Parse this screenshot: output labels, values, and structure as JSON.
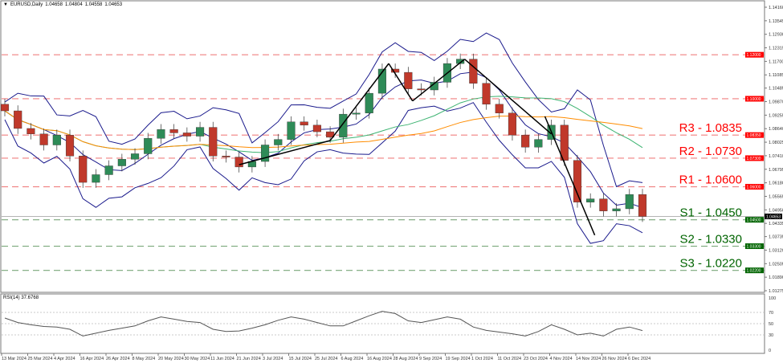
{
  "header": {
    "symbol": "EURUSD,Daily",
    "open": "1.04658",
    "high": "1.04804",
    "low": "1.04558",
    "close": "1.04653",
    "collapse_icon": "triangle-down-icon"
  },
  "rsi_header": {
    "label": "RSI(14)",
    "value": "37.6768"
  },
  "colors": {
    "bull": "#2e8b57",
    "bear": "#c0392b",
    "bollinger": "#1a1a8c",
    "ma_fast": "#3cb371",
    "ma_slow": "#ff8c00",
    "resistance": "#ff0000",
    "support": "#006400",
    "trendline": "#000000",
    "rsi": "#555555"
  },
  "chart_data": [
    {
      "type": "candlestick",
      "title": "",
      "ylim": [
        1.01275,
        1.1416
      ],
      "y_ticks": [
        "1.14160",
        "1.13545",
        "1.12930",
        "1.12315",
        "1.11700",
        "1.11085",
        "1.10485",
        "1.09870",
        "1.09255",
        "1.08640",
        "1.08025",
        "1.07410",
        "1.06795",
        "1.06180",
        "1.05565",
        "1.04950",
        "1.04335",
        "1.03735",
        "1.03120",
        "1.02505",
        "1.01890",
        "1.01275"
      ],
      "x_ticks": [
        "13 Mar 2024",
        "25 Mar 2024",
        "4 Apr 2024",
        "16 Apr 2024",
        "26 Apr 2024",
        "8 May 2024",
        "20 May 2024",
        "30 May 2024",
        "11 Jun 2024",
        "21 Jun 2024",
        "3 Jul 2024",
        "15 Jul 2024",
        "25 Jul 2024",
        "6 Aug 2024",
        "16 Aug 2024",
        "28 Aug 2024",
        "9 Sep 2024",
        "19 Sep 2024",
        "1 Oct 2024",
        "11 Oct 2024",
        "23 Oct 2024",
        "4 Nov 2024",
        "14 Nov 2024",
        "26 Nov 2024",
        "6 Dec 2024"
      ],
      "dates": [
        "13 Mar",
        "19 Mar",
        "25 Mar",
        "29 Mar",
        "4 Apr",
        "10 Apr",
        "16 Apr",
        "22 Apr",
        "26 Apr",
        "2 May",
        "8 May",
        "14 May",
        "20 May",
        "24 May",
        "30 May",
        "5 Jun",
        "11 Jun",
        "17 Jun",
        "21 Jun",
        "27 Jun",
        "3 Jul",
        "9 Jul",
        "15 Jul",
        "19 Jul",
        "25 Jul",
        "31 Jul",
        "6 Aug",
        "12 Aug",
        "16 Aug",
        "22 Aug",
        "28 Aug",
        "3 Sep",
        "9 Sep",
        "13 Sep",
        "19 Sep",
        "25 Sep",
        "1 Oct",
        "7 Oct",
        "11 Oct",
        "17 Oct",
        "23 Oct",
        "29 Oct",
        "4 Nov",
        "8 Nov",
        "14 Nov",
        "20 Nov",
        "26 Nov",
        "2 Dec",
        "6 Dec",
        "10 Dec"
      ],
      "close": [
        1.0945,
        1.0865,
        1.084,
        1.079,
        1.0835,
        1.074,
        1.062,
        1.0655,
        1.0695,
        1.0725,
        1.075,
        1.082,
        1.086,
        1.0845,
        1.083,
        1.087,
        1.074,
        1.0735,
        1.069,
        1.0715,
        1.079,
        1.0815,
        1.0895,
        1.088,
        1.085,
        1.0825,
        1.093,
        1.0935,
        1.1025,
        1.1135,
        1.112,
        1.1045,
        1.104,
        1.1075,
        1.116,
        1.118,
        1.107,
        1.0975,
        1.0935,
        1.0835,
        1.078,
        1.0815,
        1.088,
        1.072,
        1.053,
        1.0545,
        1.049,
        1.05,
        1.0565,
        1.0465
      ],
      "levels": [
        {
          "price": 1.12,
          "tag": "1.12000",
          "kind": "resistance",
          "label": ""
        },
        {
          "price": 1.1,
          "tag": "1.10000",
          "kind": "resistance",
          "label": ""
        },
        {
          "price": 1.0835,
          "tag": "1.08350",
          "kind": "resistance",
          "label": "R3 - 1.0835"
        },
        {
          "price": 1.073,
          "tag": "1.07300",
          "kind": "resistance",
          "label": "R2 - 1.0730"
        },
        {
          "price": 1.06,
          "tag": "1.06000",
          "kind": "resistance",
          "label": "R1 - 1.0600"
        },
        {
          "price": 1.045,
          "tag": "1.04500",
          "kind": "support",
          "label": "S1 - 1.0450"
        },
        {
          "price": 1.033,
          "tag": "1.03300",
          "kind": "support",
          "label": "S2 - 1.0330"
        },
        {
          "price": 1.022,
          "tag": "1.02200",
          "kind": "support",
          "label": "S3 - 1.0220"
        }
      ],
      "current_price": {
        "price": 1.04653,
        "tag": "1.04653"
      },
      "trendlines": [
        [
          [
            "21 Jun",
            1.07
          ],
          [
            "31 Jul",
            1.081
          ]
        ],
        [
          [
            "31 Jul",
            1.081
          ],
          [
            "25 Aug",
            1.116
          ]
        ],
        [
          [
            "25 Aug",
            1.116
          ],
          [
            "5 Sep",
            1.099
          ]
        ],
        [
          [
            "5 Sep",
            1.099
          ],
          [
            "27 Sep",
            1.118
          ]
        ],
        [
          [
            "27 Sep",
            1.118
          ],
          [
            "4 Nov",
            1.084
          ]
        ],
        [
          [
            "1 Nov",
            1.092
          ],
          [
            "22 Nov",
            1.038
          ]
        ]
      ]
    },
    {
      "type": "line",
      "title": "RSI(14) 37.6768",
      "ylim": [
        0,
        100
      ],
      "y_ticks": [
        "100",
        "70",
        "50",
        "30",
        "0"
      ],
      "values": [
        60,
        52,
        48,
        45,
        44,
        40,
        28,
        33,
        38,
        42,
        46,
        55,
        62,
        58,
        54,
        52,
        40,
        36,
        37,
        42,
        48,
        56,
        62,
        58,
        52,
        46,
        46,
        55,
        64,
        72,
        68,
        55,
        52,
        57,
        62,
        58,
        44,
        38,
        35,
        32,
        28,
        36,
        48,
        40,
        30,
        33,
        28,
        40,
        44,
        37.68
      ]
    }
  ]
}
